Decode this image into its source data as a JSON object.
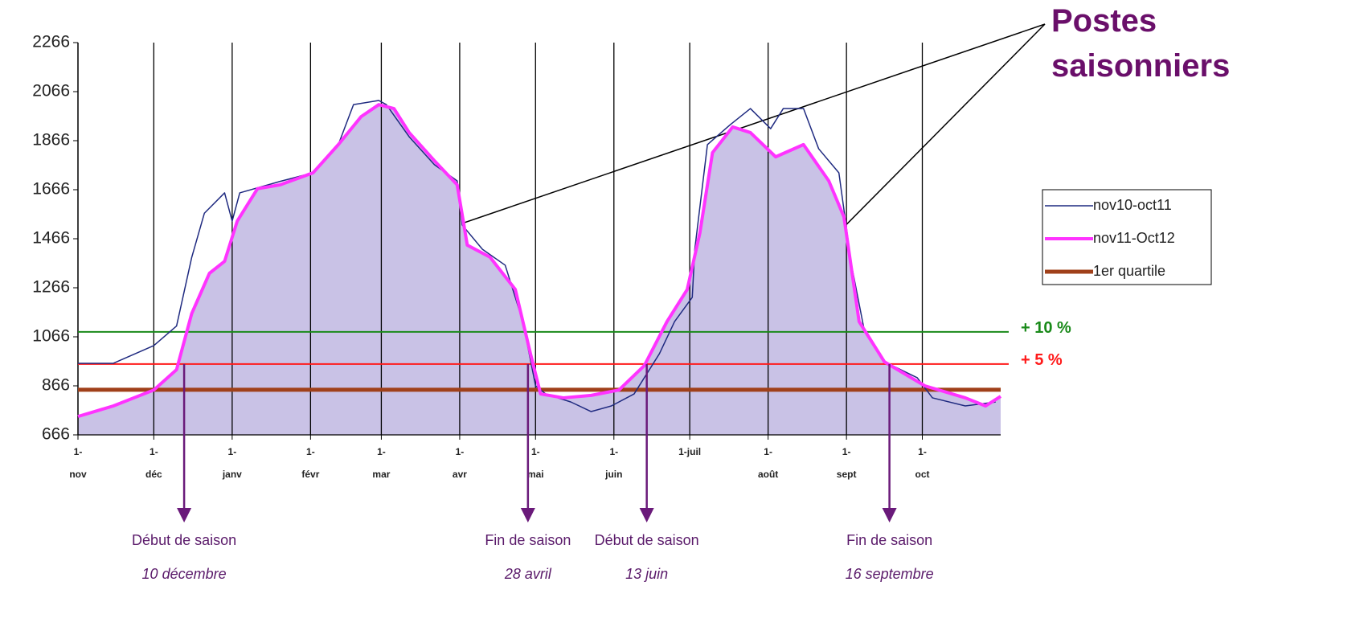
{
  "chart_data": {
    "type": "line",
    "xlim": [
      0,
      365
    ],
    "xticks": [
      {
        "value": 0,
        "label": "1-\nnov"
      },
      {
        "value": 30,
        "label": "1-\ndéc"
      },
      {
        "value": 61,
        "label": "1-\njanv"
      },
      {
        "value": 92,
        "label": "1-\nfévr"
      },
      {
        "value": 120,
        "label": "1-\nmar"
      },
      {
        "value": 151,
        "label": "1-\navr"
      },
      {
        "value": 181,
        "label": "1-\nmai"
      },
      {
        "value": 212,
        "label": "1-\njuin"
      },
      {
        "value": 242,
        "label": "1-juil"
      },
      {
        "value": 273,
        "label": "1-\naoût"
      },
      {
        "value": 304,
        "label": "1-\nsept"
      },
      {
        "value": 334,
        "label": "1-\noct"
      }
    ],
    "ylim": [
      666,
      2266
    ],
    "yticks": [
      666,
      866,
      1066,
      1266,
      1466,
      1666,
      1866,
      2066,
      2266
    ],
    "grid": "x",
    "legend": "right",
    "series": [
      {
        "name": "nov10-oct11",
        "color": "#1f2a80",
        "width": 1.5,
        "x": [
          0,
          14,
          30,
          39,
          45,
          50,
          58,
          61,
          64,
          80,
          93,
          103,
          109,
          119,
          122,
          131,
          141,
          150,
          152,
          160,
          169,
          176,
          181,
          185,
          195,
          203,
          211,
          220,
          230,
          236,
          243,
          244,
          249,
          258,
          266,
          274,
          279,
          287,
          293,
          301,
          306,
          311,
          319,
          332,
          338,
          351,
          363
        ],
        "values": [
          958,
          958,
          1030,
          1110,
          1390,
          1570,
          1653,
          1538,
          1653,
          1700,
          1735,
          1850,
          2013,
          2030,
          2013,
          1882,
          1768,
          1702,
          1522,
          1423,
          1358,
          1128,
          866,
          833,
          800,
          761,
          784,
          833,
          997,
          1128,
          1227,
          1423,
          1850,
          1931,
          1997,
          1915,
          1997,
          1997,
          1833,
          1735,
          1358,
          1095,
          964,
          899,
          817,
          784,
          800
        ]
      },
      {
        "name": "nov11-Oct12",
        "color": "#ff33ff",
        "width": 4,
        "fill": "#c9c2e6",
        "x": [
          0,
          14,
          30,
          39,
          45,
          52,
          58,
          63,
          71,
          80,
          93,
          103,
          112,
          119,
          125,
          131,
          141,
          150,
          154,
          163,
          173,
          179,
          183,
          192,
          203,
          214,
          224,
          233,
          241,
          246,
          251,
          259,
          266,
          276,
          287,
          297,
          303,
          309,
          319,
          335,
          351,
          359,
          365
        ],
        "values": [
          741,
          784,
          849,
          932,
          1161,
          1325,
          1374,
          1538,
          1670,
          1686,
          1735,
          1850,
          1964,
          2013,
          1997,
          1899,
          1784,
          1686,
          1440,
          1391,
          1259,
          997,
          833,
          817,
          827,
          849,
          948,
          1128,
          1259,
          1489,
          1817,
          1922,
          1899,
          1800,
          1850,
          1702,
          1555,
          1128,
          964,
          866,
          817,
          784,
          823
        ]
      },
      {
        "name": "1er quartile",
        "color": "#a0401a",
        "width": 5,
        "x": [
          0,
          365
        ],
        "values": [
          850,
          850
        ]
      }
    ],
    "hlines": [
      {
        "value": 1086,
        "label": "+ 10 %",
        "color": "#1a8a1a"
      },
      {
        "value": 955,
        "label": "+ 5 %",
        "color": "#ff1a1a"
      }
    ],
    "annotation": "Postes\nsaisonniers",
    "markers": [
      {
        "x": 42,
        "label": "Début de saison",
        "date": "10 décembre"
      },
      {
        "x": 178,
        "label": "Fin de saison",
        "date": "28 avril"
      },
      {
        "x": 225,
        "label": "Début de saison",
        "date": "13 juin"
      },
      {
        "x": 321,
        "label": "Fin de saison",
        "date": "16 septembre"
      }
    ]
  }
}
